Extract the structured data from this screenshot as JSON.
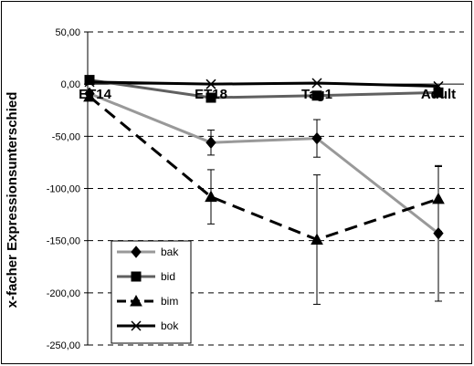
{
  "chart_data": {
    "type": "line",
    "title": "",
    "xlabel": "",
    "ylabel": "x-facher Expressionsunterschied",
    "categories": [
      "ET14",
      "ET18",
      "Tag1",
      "Adult"
    ],
    "ylim": [
      -250,
      50
    ],
    "yticks": [
      50,
      0,
      -50,
      -100,
      -150,
      -200,
      -250
    ],
    "ytick_labels": [
      "50,00",
      "0,00",
      "-50,00",
      "-100,00",
      "-150,00",
      "-200,00",
      "-250,00"
    ],
    "grid": "horizontal dashed",
    "legend_position": "bottom-left",
    "series": [
      {
        "name": "bak",
        "values": [
          -9,
          -56,
          -52,
          -143
        ],
        "error": [
          null,
          12,
          18,
          65
        ],
        "color": "#999999",
        "marker": "diamond",
        "dash": "solid"
      },
      {
        "name": "bid",
        "values": [
          4,
          -13,
          -11,
          -8
        ],
        "error": [
          null,
          null,
          null,
          null
        ],
        "color": "#606060",
        "marker": "square",
        "dash": "solid"
      },
      {
        "name": "bim",
        "values": [
          -12,
          -108,
          -149,
          -110
        ],
        "error": [
          null,
          26,
          62,
          31
        ],
        "color": "#000000",
        "marker": "triangle",
        "dash": "dashed"
      },
      {
        "name": "bok",
        "values": [
          2,
          0,
          1,
          -2
        ],
        "error": [
          null,
          null,
          null,
          null
        ],
        "color": "#000000",
        "marker": "x",
        "dash": "solid"
      }
    ]
  }
}
